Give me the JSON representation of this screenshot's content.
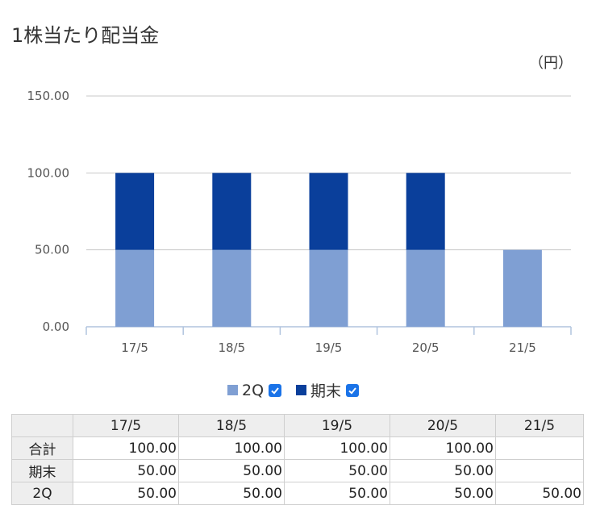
{
  "title": "1株当たり配当金",
  "unit": "（円）",
  "legend": {
    "series_2q": "2Q",
    "series_kimatsu": "期末"
  },
  "colors": {
    "series_2q": "#7f9fd3",
    "series_kimatsu": "#0a3f9b",
    "checkbox": "#1a73e8"
  },
  "chart_data": {
    "type": "bar",
    "stacked": true,
    "categories": [
      "17/5",
      "18/5",
      "19/5",
      "20/5",
      "21/5"
    ],
    "series": [
      {
        "name": "2Q",
        "values": [
          50,
          50,
          50,
          50,
          50
        ]
      },
      {
        "name": "期末",
        "values": [
          50,
          50,
          50,
          50,
          0
        ]
      }
    ],
    "ylim": [
      0,
      150
    ],
    "yticks": [
      "0.00",
      "50.00",
      "100.00",
      "150.00"
    ],
    "grid": true
  },
  "table": {
    "columns": [
      "17/5",
      "18/5",
      "19/5",
      "20/5",
      "21/5"
    ],
    "rows": [
      {
        "label": "合計",
        "values": [
          "100.00",
          "100.00",
          "100.00",
          "100.00",
          ""
        ]
      },
      {
        "label": "期末",
        "values": [
          "50.00",
          "50.00",
          "50.00",
          "50.00",
          ""
        ]
      },
      {
        "label": "2Q",
        "values": [
          "50.00",
          "50.00",
          "50.00",
          "50.00",
          "50.00"
        ]
      }
    ]
  }
}
